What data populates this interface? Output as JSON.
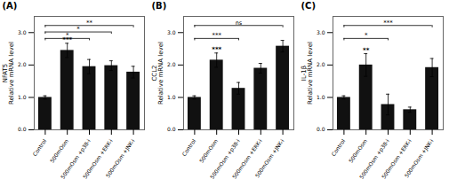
{
  "chart_data": [
    {
      "type": "bar",
      "title": "(A)",
      "ylabel": "NFAT5\nRelative mRNA level",
      "categories": [
        "Control",
        "500mOsm",
        "500mOsm +p38-i",
        "500mOsm +ERK-i",
        "500mOsm +JNK-i"
      ],
      "values": [
        1.0,
        2.45,
        1.95,
        1.98,
        1.78
      ],
      "errors": [
        0.05,
        0.22,
        0.22,
        0.15,
        0.18
      ],
      "color": "#111111",
      "ylim": [
        0,
        3.5
      ],
      "yticks": [
        0,
        1,
        2,
        3
      ],
      "bar_annotations": [
        {
          "category": "500mOsm",
          "text": "***"
        }
      ],
      "brackets": [
        {
          "from": "Control",
          "to": "500mOsm +p38-i",
          "y": 2.82,
          "text": "*"
        },
        {
          "from": "Control",
          "to": "500mOsm +ERK-i",
          "y": 3.02,
          "text": "*"
        },
        {
          "from": "Control",
          "to": "500mOsm +JNK-i",
          "y": 3.22,
          "text": "**"
        }
      ]
    },
    {
      "type": "bar",
      "title": "(B)",
      "ylabel": "CCL2\nRelative mRNA level",
      "categories": [
        "Control",
        "500mOsm",
        "500mOsm +p38-i",
        "500mOsm +ERK-i",
        "500mOsm +JNK-i"
      ],
      "values": [
        1.0,
        2.15,
        1.28,
        1.9,
        2.58
      ],
      "errors": [
        0.05,
        0.22,
        0.18,
        0.15,
        0.18
      ],
      "color": "#111111",
      "ylim": [
        0,
        3.5
      ],
      "yticks": [
        0,
        1,
        2,
        3
      ],
      "bar_annotations": [
        {
          "category": "500mOsm",
          "text": "***"
        }
      ],
      "brackets": [
        {
          "from": "Control",
          "to": "500mOsm +p38-i",
          "y": 2.82,
          "text": "***"
        },
        {
          "from": "Control",
          "to": "500mOsm +JNK-i",
          "y": 3.22,
          "text": "ns"
        }
      ]
    },
    {
      "type": "bar",
      "title": "(C)",
      "ylabel": "IL-1β\nRelative mRNA level",
      "categories": [
        "Control",
        "500mOsm",
        "500mOsm +p38-i",
        "500mOsm +ERK-i",
        "500mOsm +JNK-i"
      ],
      "values": [
        1.0,
        2.0,
        0.78,
        0.62,
        1.92
      ],
      "errors": [
        0.05,
        0.35,
        0.32,
        0.08,
        0.28
      ],
      "color": "#111111",
      "ylim": [
        0,
        3.5
      ],
      "yticks": [
        0,
        1,
        2,
        3
      ],
      "bar_annotations": [
        {
          "category": "500mOsm",
          "text": "**"
        }
      ],
      "brackets": [
        {
          "from": "Control",
          "to": "500mOsm +p38-i",
          "y": 2.82,
          "text": "*"
        },
        {
          "from": "Control",
          "to": "500mOsm +JNK-i",
          "y": 3.22,
          "text": "***"
        }
      ]
    }
  ]
}
